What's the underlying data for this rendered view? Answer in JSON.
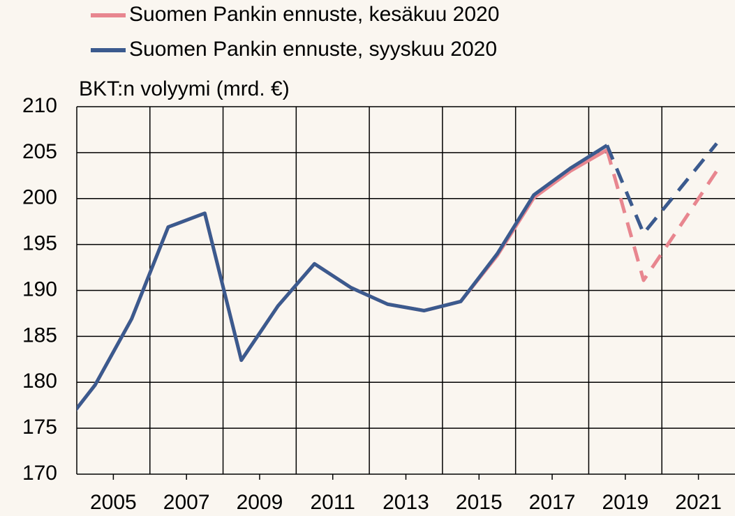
{
  "chart_data": {
    "type": "line",
    "y_axis_label": "BKT:n volyymi (mrd. €)",
    "x": [
      2003.5,
      2004.5,
      2005.5,
      2006.5,
      2007.5,
      2008.5,
      2009.5,
      2010.5,
      2011.5,
      2012.5,
      2013.5,
      2014.5,
      2015.5,
      2016.5,
      2017.5,
      2018.5,
      2019.5,
      2020.5,
      2021.5
    ],
    "series": [
      {
        "name": "Suomen Pankin ennuste, kesäkuu 2020",
        "color": "#e8868f",
        "values": [
          174.6,
          179.7,
          186.9,
          196.9,
          198.4,
          182.4,
          188.3,
          192.9,
          190.3,
          188.5,
          187.8,
          188.8,
          193.8,
          200.1,
          203.0,
          205.3,
          191.1,
          197.0,
          203.0
        ]
      },
      {
        "name": "Suomen Pankin ennuste, syyskuu 2020",
        "color": "#3b5a8e",
        "values": [
          174.6,
          179.7,
          186.9,
          196.9,
          198.4,
          182.4,
          188.3,
          192.9,
          190.3,
          188.5,
          187.8,
          188.8,
          194.0,
          200.4,
          203.3,
          205.8,
          196.2,
          201.1,
          206.0
        ]
      }
    ],
    "forecast_start": 2018.5,
    "xlim": [
      2004,
      2022
    ],
    "xticks": [
      2005,
      2007,
      2009,
      2011,
      2013,
      2015,
      2017,
      2019,
      2021
    ],
    "xgrid": [
      2006,
      2008,
      2010,
      2012,
      2014,
      2016,
      2018,
      2020
    ],
    "ylim": [
      170,
      210
    ],
    "yticks": [
      170,
      175,
      180,
      185,
      190,
      195,
      200,
      205,
      210
    ],
    "grid": true
  }
}
